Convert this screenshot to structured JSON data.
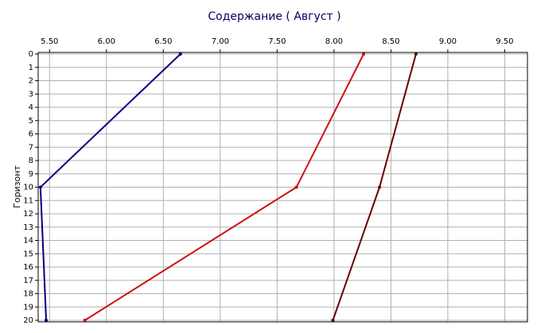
{
  "chart_data": {
    "type": "line",
    "orientation": "horizontal",
    "title": "Содержание    ( Август )",
    "y_label": "Горизонт",
    "horizons": [
      0,
      10,
      20
    ],
    "series": [
      {
        "color": "#000080",
        "values": [
          6.65,
          5.42,
          5.47
        ]
      },
      {
        "color": "#cc1111",
        "values": [
          8.26,
          7.67,
          5.81
        ]
      },
      {
        "color": "#660000",
        "values": [
          8.72,
          8.4,
          7.99
        ]
      }
    ],
    "xlim": [
      5.4,
      9.7
    ],
    "xticks": [
      {
        "value": 5.5,
        "label": "5.50"
      },
      {
        "value": 6,
        "label": "6.00"
      },
      {
        "value": 6.5,
        "label": "6.50"
      },
      {
        "value": 7,
        "label": "7.00"
      },
      {
        "value": 7.5,
        "label": "7.50"
      },
      {
        "value": 8,
        "label": "8.00"
      },
      {
        "value": 8.5,
        "label": "8.50"
      },
      {
        "value": 9,
        "label": "9.00"
      },
      {
        "value": 9.5,
        "label": "9.50"
      }
    ],
    "ylim": [
      0,
      20
    ],
    "yticks": [
      0,
      1,
      2,
      3,
      4,
      5,
      6,
      7,
      8,
      9,
      10,
      11,
      12,
      13,
      14,
      15,
      16,
      17,
      18,
      19,
      20
    ],
    "grid": true
  }
}
